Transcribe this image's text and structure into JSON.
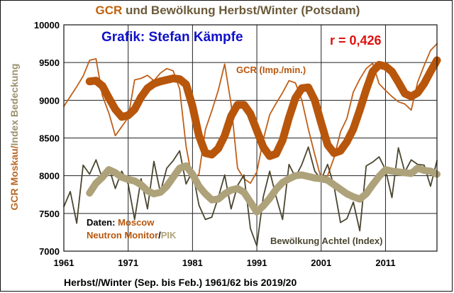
{
  "header": {
    "title_gcr": "GCR",
    "title_rest": " und Bewölkung Herbst/Winter (Potsdam)"
  },
  "chart_data": {
    "type": "line",
    "title": "GCR und Bewölkung Herbst/Winter (Potsdam)",
    "author_label": "Grafik: Stefan Kämpfe",
    "correlation_label": "r = 0,426",
    "xlabel": "Herbst//Winter (Sep. bis Feb.) 1961/62 bis 2019/20",
    "ylabel_part1": "GCR Moskau/",
    "ylabel_part2": "Index Bedeckung",
    "xlim": [
      1961,
      2019
    ],
    "ylim": [
      7000,
      10000
    ],
    "x_ticks": [
      1961,
      1971,
      1981,
      1991,
      2001,
      2011
    ],
    "y_ticks": [
      7000,
      7500,
      8000,
      8500,
      9000,
      9500,
      10000
    ],
    "y_tick_labels": [
      "7000",
      "7500",
      "8000",
      "8500",
      "9000",
      "9500",
      "10000"
    ],
    "x_tick_labels": [
      "1961",
      "1971",
      "1981",
      "1991",
      "2001",
      "2011"
    ],
    "grid": true,
    "colors": {
      "gcr": "#b8560c",
      "gcr_thin": "#bf5f18",
      "cloud_thin": "#4a4630",
      "cloud_smooth": "#aea27a",
      "author": "#1010c8",
      "correlation": "#e01010",
      "axis_text": "#000000",
      "ylabel_gcr": "#b86a2a",
      "ylabel_idx": "#9c9270",
      "grid": "#222222"
    },
    "labels": {
      "gcr_series": "GCR (Imp./min.)",
      "cloud_series": "Bewölkung Achtel (Index)",
      "source_prefix": "Daten: ",
      "source_moscow": "Moscow",
      "source_nm": "Neutron Monitor",
      "source_slash": "/",
      "source_pik": "PIK"
    },
    "series": [
      {
        "name": "GCR (Imp./min.)",
        "x": [
          1961,
          1962,
          1963,
          1964,
          1965,
          1966,
          1967,
          1968,
          1969,
          1970,
          1971,
          1972,
          1973,
          1974,
          1975,
          1976,
          1977,
          1978,
          1979,
          1980,
          1981,
          1982,
          1983,
          1984,
          1985,
          1986,
          1987,
          1988,
          1989,
          1990,
          1991,
          1992,
          1993,
          1994,
          1995,
          1996,
          1997,
          1998,
          1999,
          2000,
          2001,
          2002,
          2003,
          2004,
          2005,
          2006,
          2007,
          2008,
          2009,
          2010,
          2011,
          2012,
          2013,
          2014,
          2015,
          2016,
          2017,
          2018,
          2019
        ],
        "y": [
          8920,
          9050,
          9180,
          9320,
          9530,
          9550,
          9060,
          8830,
          8530,
          8650,
          8770,
          9270,
          9290,
          9330,
          9260,
          9360,
          9420,
          9390,
          9150,
          8390,
          7930,
          8020,
          8610,
          8860,
          9130,
          9480,
          8950,
          8100,
          7960,
          7900,
          8050,
          8480,
          8810,
          8960,
          9100,
          9260,
          9230,
          9000,
          8620,
          8280,
          7960,
          8000,
          8240,
          8580,
          8760,
          9110,
          9280,
          9420,
          9490,
          9220,
          9130,
          9050,
          8980,
          8950,
          8870,
          9240,
          9460,
          9660,
          9750
        ]
      },
      {
        "name": "GCR smoothed",
        "x": [
          1965,
          1966,
          1967,
          1968,
          1969,
          1970,
          1971,
          1972,
          1973,
          1974,
          1975,
          1976,
          1977,
          1978,
          1979,
          1980,
          1981,
          1982,
          1983,
          1984,
          1985,
          1986,
          1987,
          1988,
          1989,
          1990,
          1991,
          1992,
          1993,
          1994,
          1995,
          1996,
          1997,
          1998,
          1999,
          2000,
          2001,
          2002,
          2003,
          2004,
          2005,
          2006,
          2007,
          2008,
          2009,
          2010,
          2011,
          2012,
          2013,
          2014,
          2015,
          2016,
          2017,
          2018,
          2019
        ],
        "y": [
          9250,
          9260,
          9190,
          9030,
          8880,
          8780,
          8800,
          8880,
          9040,
          9160,
          9220,
          9250,
          9270,
          9290,
          9280,
          9210,
          8920,
          8530,
          8300,
          8280,
          8360,
          8530,
          8790,
          8940,
          8940,
          8820,
          8600,
          8380,
          8260,
          8290,
          8470,
          8770,
          9030,
          9160,
          9170,
          9000,
          8700,
          8410,
          8300,
          8330,
          8450,
          8620,
          8870,
          9140,
          9380,
          9470,
          9450,
          9380,
          9240,
          9090,
          9050,
          9100,
          9220,
          9380,
          9530
        ]
      },
      {
        "name": "Bewölkung Achtel (Index)",
        "x": [
          1961,
          1962,
          1963,
          1964,
          1965,
          1966,
          1967,
          1968,
          1969,
          1970,
          1971,
          1972,
          1973,
          1974,
          1975,
          1976,
          1977,
          1978,
          1979,
          1980,
          1981,
          1982,
          1983,
          1984,
          1985,
          1986,
          1987,
          1988,
          1989,
          1990,
          1991,
          1992,
          1993,
          1994,
          1995,
          1996,
          1997,
          1998,
          1999,
          2000,
          2001,
          2002,
          2003,
          2004,
          2005,
          2006,
          2007,
          2008,
          2009,
          2010,
          2011,
          2012,
          2013,
          2014,
          2015,
          2016,
          2017,
          2018,
          2019
        ],
        "y": [
          7590,
          7790,
          7370,
          8140,
          8020,
          8210,
          7960,
          8110,
          7830,
          8060,
          7890,
          7420,
          7960,
          7560,
          8190,
          7780,
          8100,
          8200,
          8330,
          7890,
          8060,
          7610,
          7420,
          7450,
          7710,
          8010,
          7560,
          7870,
          8010,
          7300,
          7070,
          7720,
          8060,
          7720,
          7420,
          8150,
          7980,
          8150,
          8380,
          8060,
          7950,
          8150,
          7860,
          7380,
          7430,
          7650,
          7270,
          8130,
          8180,
          8250,
          8080,
          7710,
          8370,
          8050,
          8210,
          8150,
          8140,
          7860,
          8200
        ]
      },
      {
        "name": "Bewölkung smoothed",
        "x": [
          1965,
          1966,
          1967,
          1968,
          1969,
          1970,
          1971,
          1972,
          1973,
          1974,
          1975,
          1976,
          1977,
          1978,
          1979,
          1980,
          1981,
          1982,
          1983,
          1984,
          1985,
          1986,
          1987,
          1988,
          1989,
          1990,
          1991,
          1992,
          1993,
          1994,
          1995,
          1996,
          1997,
          1998,
          1999,
          2000,
          2001,
          2002,
          2003,
          2004,
          2005,
          2006,
          2007,
          2008,
          2009,
          2010,
          2011,
          2012,
          2013,
          2014,
          2015,
          2016,
          2017,
          2018,
          2019
        ],
        "y": [
          7770,
          7900,
          7980,
          8080,
          8040,
          7980,
          7950,
          7930,
          7880,
          7800,
          7760,
          7780,
          7860,
          7980,
          8100,
          8130,
          8020,
          7860,
          7760,
          7680,
          7690,
          7760,
          7810,
          7830,
          7780,
          7650,
          7520,
          7600,
          7700,
          7820,
          7910,
          7960,
          8000,
          8010,
          7990,
          7970,
          7960,
          7940,
          7880,
          7820,
          7760,
          7720,
          7690,
          7760,
          7880,
          7990,
          8080,
          8060,
          8050,
          8040,
          8030,
          8100,
          8070,
          8060,
          8020
        ]
      }
    ]
  }
}
